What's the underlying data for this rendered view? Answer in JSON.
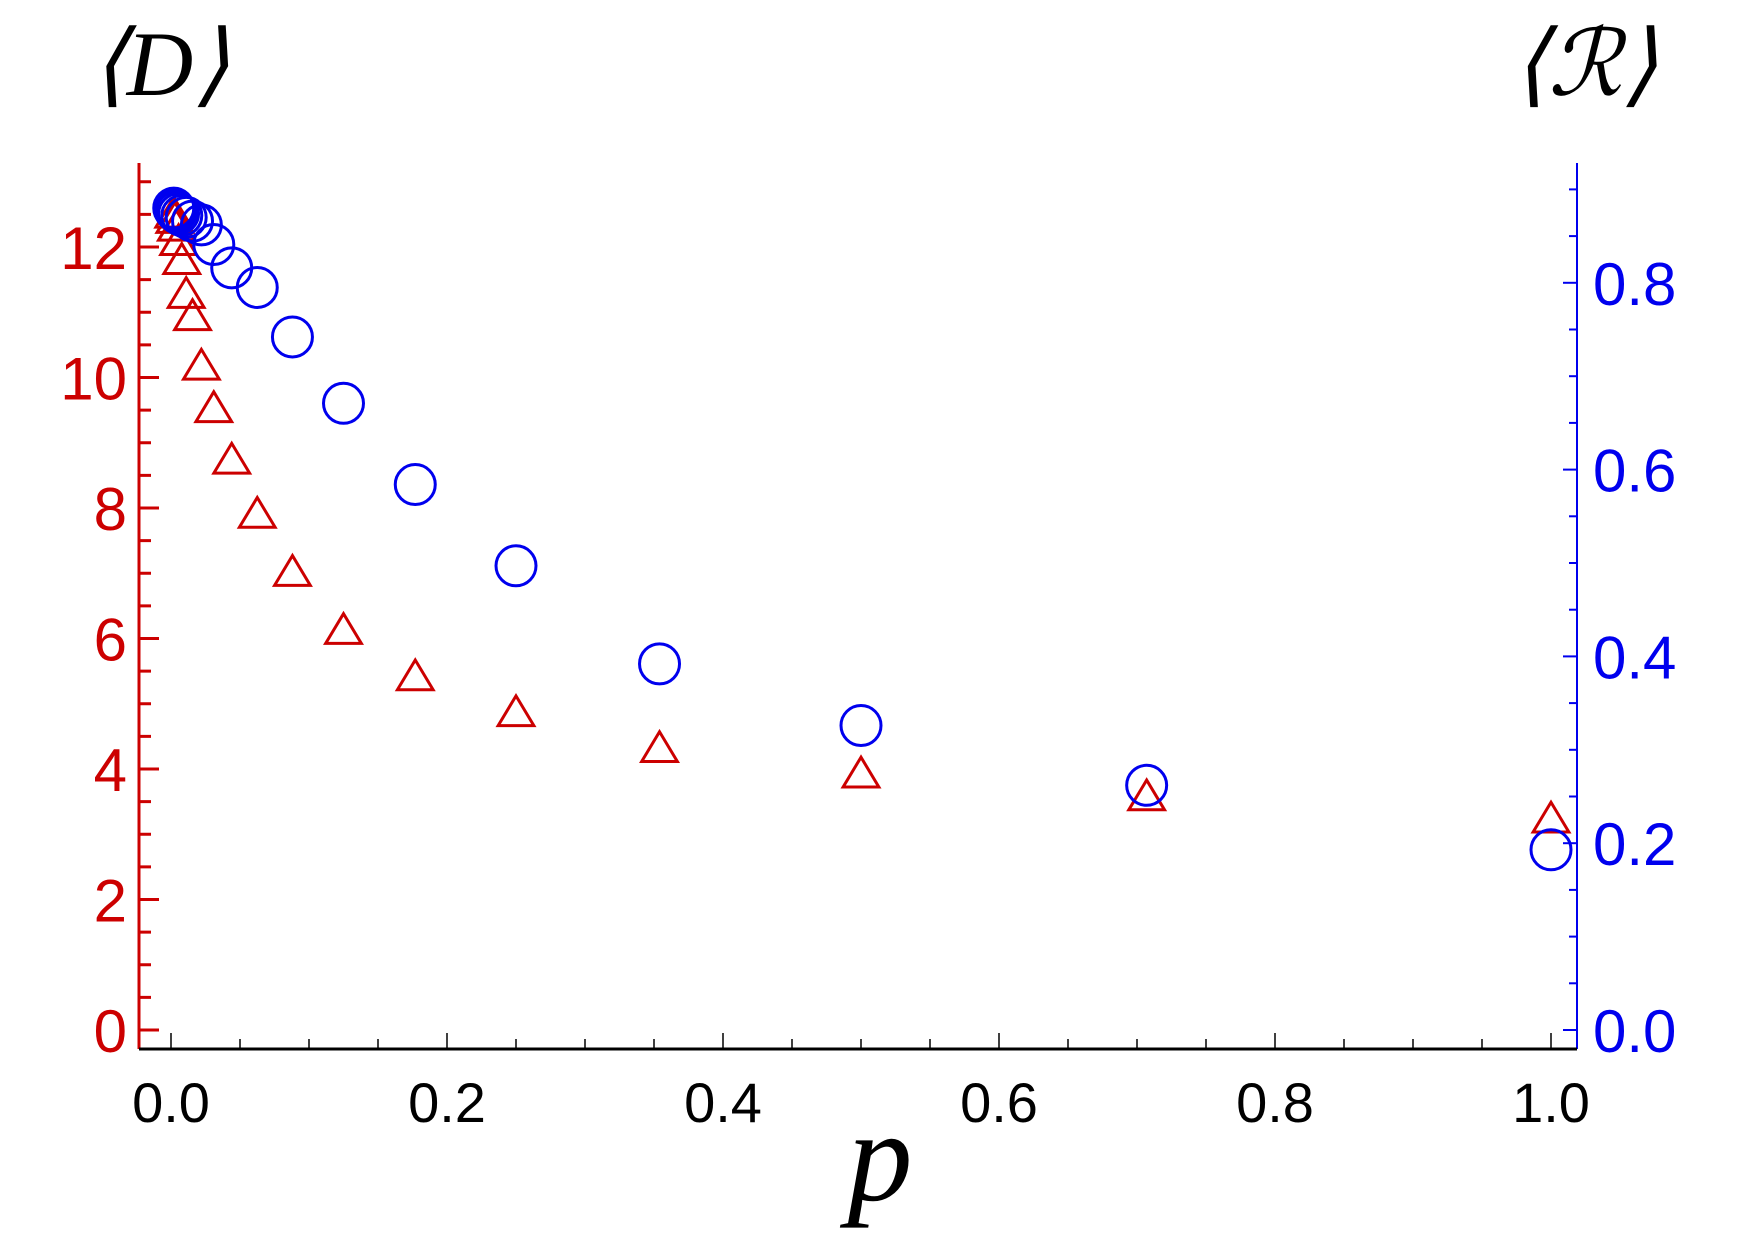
{
  "chart_data": {
    "type": "scatter",
    "title": "",
    "xlabel": "p",
    "ylabel_left": "⟨D⟩",
    "ylabel_right": "⟨ℛ⟩",
    "xlim": [
      0,
      1
    ],
    "ylim_left": [
      0,
      13.2
    ],
    "ylim_right": [
      0,
      0.9
    ],
    "x_ticks": [
      "0.0",
      "0.2",
      "0.4",
      "0.6",
      "0.8",
      "1.0"
    ],
    "y_left_ticks": [
      "0",
      "2",
      "4",
      "6",
      "8",
      "10",
      "12"
    ],
    "y_right_ticks": [
      "0.0",
      "0.2",
      "0.4",
      "0.6",
      "0.8"
    ],
    "grid": false,
    "colors": {
      "left": "#cc0000",
      "right": "#0000ee",
      "xaxis": "#000000"
    },
    "series": [
      {
        "axis": "left",
        "marker": "triangle",
        "color": "#cc0000",
        "x": [
          1.0,
          0.707,
          0.5,
          0.354,
          0.25,
          0.177,
          0.125,
          0.088,
          0.0625,
          0.044,
          0.031,
          0.022,
          0.0156,
          0.011,
          0.0078,
          0.0055,
          0.0039,
          0.0028,
          0.002
        ],
        "y": [
          3.23,
          3.57,
          3.92,
          4.31,
          4.86,
          5.41,
          6.12,
          7.01,
          7.9,
          8.73,
          9.52,
          10.17,
          10.93,
          11.27,
          11.79,
          12.08,
          12.3,
          12.42,
          12.5
        ]
      },
      {
        "axis": "right",
        "marker": "circle",
        "color": "#0000ee",
        "x": [
          1.0,
          0.707,
          0.5,
          0.354,
          0.25,
          0.177,
          0.125,
          0.088,
          0.0625,
          0.044,
          0.031,
          0.022,
          0.0156,
          0.011,
          0.0078,
          0.0055,
          0.0039,
          0.0028,
          0.002
        ],
        "y": [
          0.193,
          0.262,
          0.326,
          0.392,
          0.497,
          0.584,
          0.671,
          0.742,
          0.795,
          0.816,
          0.841,
          0.862,
          0.866,
          0.87,
          0.872,
          0.874,
          0.876,
          0.878,
          0.88
        ]
      }
    ]
  }
}
